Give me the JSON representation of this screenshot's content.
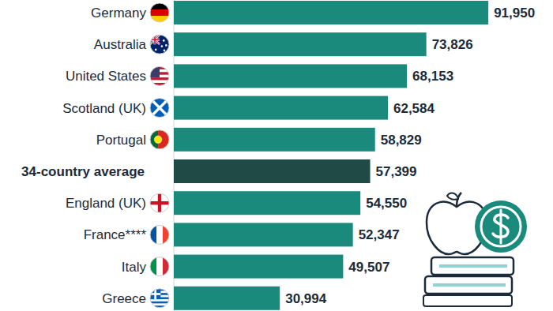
{
  "chart_data": {
    "type": "bar",
    "orientation": "horizontal",
    "categories": [
      "Germany",
      "Australia",
      "United States",
      "Scotland (UK)",
      "Portugal",
      "34-country average",
      "England (UK)",
      "France****",
      "Italy",
      "Greece"
    ],
    "values": [
      91950,
      73826,
      68153,
      62584,
      58829,
      57399,
      54550,
      52347,
      49507,
      30994
    ],
    "value_labels": [
      "91,950",
      "73,826",
      "68,153",
      "62,584",
      "58,829",
      "57,399",
      "54,550",
      "52,347",
      "49,507",
      "30,994"
    ],
    "colors": [
      "#1a8a7c",
      "#1a8a7c",
      "#1a8a7c",
      "#1a8a7c",
      "#1a8a7c",
      "#1f4a45",
      "#1a8a7c",
      "#1a8a7c",
      "#1a8a7c",
      "#1a8a7c"
    ],
    "xlim": [
      0,
      100000
    ],
    "data_labels": true,
    "tick_labels": "y",
    "grid": false
  }
}
